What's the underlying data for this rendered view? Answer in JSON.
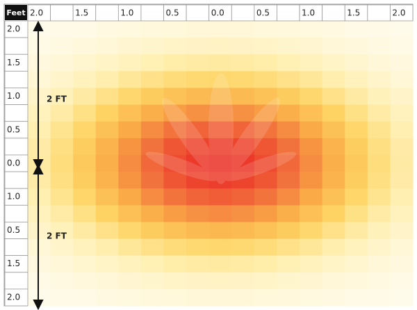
{
  "corner": "Feet",
  "top_labels": [
    "2.0",
    "1.5",
    "1.0",
    "0.5",
    "0.0",
    "0.5",
    "1.0",
    "1.5",
    "2.0"
  ],
  "left_labels": [
    "2.0",
    "1.5",
    "1.0",
    "0.5",
    "0.0",
    "1.0",
    "0.5",
    "1.5",
    "2.0"
  ],
  "dimension_labels": [
    "2 FT",
    "2 FT"
  ]
}
